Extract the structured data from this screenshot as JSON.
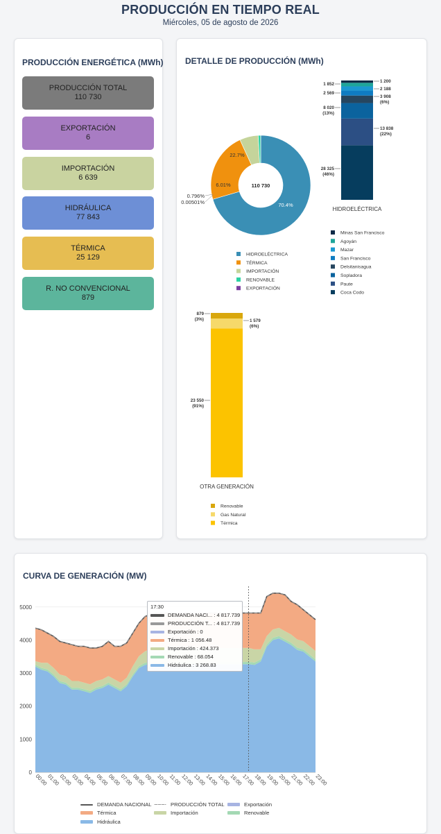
{
  "header": {
    "title": "PRODUCCIÓN EN TIEMPO REAL",
    "date": "Miércoles, 05 de agosto de 2026"
  },
  "kpi_panel": {
    "title": "PRODUCCIÓN ENERGÉTICA (MWh)",
    "items": [
      {
        "label": "PRODUCCIÓN TOTAL",
        "value": "110 730",
        "color": "#7b7b7b"
      },
      {
        "label": "EXPORTACIÓN",
        "value": "6",
        "color": "#a87cc3"
      },
      {
        "label": "IMPORTACIÓN",
        "value": "6 639",
        "color": "#c9d3a0"
      },
      {
        "label": "HIDRÁULICA",
        "value": "77 843",
        "color": "#6d8fd6"
      },
      {
        "label": "TÉRMICA",
        "value": "25 129",
        "color": "#e6bd52"
      },
      {
        "label": "R. NO CONVENCIONAL",
        "value": "879",
        "color": "#5cb59c"
      }
    ]
  },
  "detail": {
    "title": "DETALLE DE PRODUCCIÓN (MWh)"
  },
  "chart_data": [
    {
      "type": "pie",
      "donut_center": "110 730",
      "labels": [
        "HIDROELÉCTRICA",
        "TÉRMICA",
        "IMPORTACIÓN",
        "RENOVABLE",
        "EXPORTACIÓN"
      ],
      "values": [
        70.4,
        22.7,
        6.01,
        0.796,
        0.00501
      ],
      "value_labels": [
        "70.4%",
        "22.7%",
        "6.01%",
        "0.796%",
        "0.00501%"
      ],
      "colors": [
        "#3a8fb5",
        "#f0910e",
        "#c5d49b",
        "#2bd1a3",
        "#7b3fa0"
      ]
    },
    {
      "type": "bar",
      "stacked": true,
      "category": "HIDROELÉCTRICA",
      "segments": [
        {
          "name": "Coca Codo",
          "value": 28325,
          "label": "28 325",
          "pct": "(46%)",
          "color": "#063d5e"
        },
        {
          "name": "Paute",
          "value": 13838,
          "label": "13 838",
          "pct": "(22%)",
          "color": "#2c4f84"
        },
        {
          "name": "Sopladora",
          "value": 8020,
          "label": "8 020",
          "pct": "(13%)",
          "color": "#0b639e"
        },
        {
          "name": "Delsitanisagua",
          "value": 3908,
          "label": "3 908",
          "pct": "(6%)",
          "color": "#26465f"
        },
        {
          "name": "San Francisco",
          "value": 2569,
          "label": "2 569",
          "pct": "",
          "color": "#0f7cc2"
        },
        {
          "name": "Mazar",
          "value": 2188,
          "label": "2 188",
          "pct": "",
          "color": "#1b98d1"
        },
        {
          "name": "Agoyán",
          "value": 1852,
          "label": "1 852",
          "pct": "",
          "color": "#1fa59a"
        },
        {
          "name": "Minas San Francisco",
          "value": 1200,
          "label": "1 200",
          "pct": "",
          "color": "#0e2a47"
        }
      ]
    },
    {
      "type": "bar",
      "stacked": true,
      "category": "OTRA GENERACIÓN",
      "segments": [
        {
          "name": "Térmica",
          "value": 23550,
          "label": "23 550",
          "pct": "(91%)",
          "color": "#fcc300"
        },
        {
          "name": "Gas Natural",
          "value": 1579,
          "label": "1 579",
          "pct": "(6%)",
          "color": "#f6d96a"
        },
        {
          "name": "Renovable",
          "value": 879,
          "label": "879",
          "pct": "(3%)",
          "color": "#d9a70c"
        }
      ]
    },
    {
      "type": "area",
      "title": "CURVA DE GENERACIÓN (MW)",
      "x": [
        "00:00",
        "00:30",
        "01:00",
        "01:30",
        "02:00",
        "02:30",
        "03:00",
        "03:30",
        "04:00",
        "04:30",
        "05:00",
        "05:30",
        "06:00",
        "06:30",
        "07:00",
        "07:30",
        "08:00",
        "08:30",
        "09:00",
        "09:30",
        "10:00",
        "10:30",
        "11:00",
        "11:30",
        "12:00",
        "12:30",
        "13:00",
        "13:30",
        "14:00",
        "14:30",
        "15:00",
        "15:30",
        "16:00",
        "16:30",
        "17:00",
        "17:30",
        "18:00",
        "18:30",
        "19:00",
        "19:30",
        "20:00",
        "20:30",
        "21:00",
        "21:30",
        "22:00",
        "22:30",
        "23:00"
      ],
      "x_tick_labels": [
        "00:00",
        "01:00",
        "02:00",
        "03:00",
        "04:00",
        "05:00",
        "06:00",
        "07:00",
        "08:00",
        "09:00",
        "10:00",
        "11:00",
        "12:00",
        "13:00",
        "14:00",
        "15:00",
        "16:00",
        "17:00",
        "18:00",
        "19:00",
        "20:00",
        "21:00",
        "22:00",
        "23:00"
      ],
      "ylim": [
        0,
        5500
      ],
      "y_ticks": [
        0,
        1000,
        2000,
        3000,
        4000,
        5000
      ],
      "series": [
        {
          "name": "Hidráulica",
          "color": "#8ab9e6",
          "values": [
            3200,
            3100,
            3050,
            2900,
            2700,
            2650,
            2500,
            2500,
            2450,
            2400,
            2500,
            2550,
            2650,
            2550,
            2450,
            2600,
            2900,
            3150,
            3250,
            3268,
            3268,
            3268,
            3268,
            3268,
            3268,
            3268,
            3268,
            3268,
            3268,
            3268,
            3268,
            3268,
            3268,
            3268,
            3268,
            3268.83,
            3250,
            3350,
            3800,
            4000,
            4050,
            3950,
            3850,
            3700,
            3650,
            3500,
            3350
          ]
        },
        {
          "name": "Renovable",
          "color": "#a4d9b4",
          "values": [
            60,
            60,
            60,
            60,
            60,
            60,
            60,
            60,
            60,
            60,
            60,
            60,
            60,
            60,
            60,
            60,
            60,
            60,
            60,
            68,
            68,
            68,
            68,
            68,
            68,
            68,
            68,
            68,
            68,
            68,
            68,
            68,
            68,
            68,
            68,
            68.054,
            68,
            68,
            68,
            68,
            68,
            68,
            68,
            68,
            68,
            68,
            68
          ]
        },
        {
          "name": "Importación",
          "color": "#c9d5a6",
          "values": [
            100,
            150,
            200,
            200,
            200,
            200,
            200,
            200,
            200,
            200,
            200,
            200,
            200,
            200,
            200,
            200,
            250,
            300,
            350,
            400,
            424,
            424,
            424,
            424,
            424,
            424,
            424,
            424,
            424,
            424,
            424,
            424,
            424,
            424,
            424,
            424.373,
            400,
            300,
            250,
            250,
            250,
            250,
            250,
            250,
            250,
            250,
            250
          ]
        },
        {
          "name": "Térmica",
          "color": "#f3aa83",
          "values": [
            1000,
            1000,
            900,
            950,
            1000,
            1000,
            1100,
            1050,
            1100,
            1100,
            1000,
            1000,
            1050,
            1000,
            1100,
            1050,
            1000,
            1000,
            1050,
            1050,
            1056,
            1056,
            1056,
            1056,
            1056,
            1056,
            1056,
            1056,
            1056,
            1056,
            1056,
            1056,
            1056,
            1056,
            1056,
            1056.48,
            1100,
            1100,
            1200,
            1100,
            1050,
            1100,
            1000,
            1050,
            950,
            950,
            950
          ]
        },
        {
          "name": "Exportación",
          "color": "#a7b4e2",
          "values": [
            0,
            0,
            0,
            0,
            0,
            0,
            0,
            0,
            0,
            0,
            0,
            0,
            0,
            0,
            0,
            0,
            0,
            0,
            0,
            0,
            0,
            0,
            0,
            0,
            0,
            0,
            0,
            0,
            0,
            0,
            0,
            0,
            0,
            0,
            0,
            0,
            0,
            0,
            0,
            0,
            0,
            0,
            0,
            0,
            0,
            0,
            0
          ]
        },
        {
          "name": "DEMANDA NACIONAL",
          "color": "#555555",
          "line": true,
          "values": [
            4360,
            4310,
            4210,
            4110,
            3960,
            3910,
            3860,
            3810,
            3810,
            3760,
            3760,
            3810,
            3960,
            3810,
            3810,
            3910,
            4210,
            4510,
            4710,
            4786,
            4817,
            4817,
            4817,
            4817,
            4817,
            4817,
            4817,
            4817,
            4817,
            4817,
            4817,
            4817,
            4817,
            4817,
            4817,
            4817.739,
            4818,
            4818,
            5318,
            5418,
            5418,
            5368,
            5168,
            5068,
            4918,
            4768,
            4618
          ]
        },
        {
          "name": "PRODUCCIÓN TOTAL",
          "color": "#999999",
          "dashed": true,
          "values": [
            4360,
            4310,
            4210,
            4110,
            3960,
            3910,
            3860,
            3810,
            3810,
            3760,
            3760,
            3810,
            3960,
            3810,
            3810,
            3910,
            4210,
            4510,
            4710,
            4786,
            4817,
            4817,
            4817,
            4817,
            4817,
            4817,
            4817,
            4817,
            4817,
            4817,
            4817,
            4817,
            4817,
            4817,
            4817,
            4817.739,
            4818,
            4818,
            5318,
            5418,
            5418,
            5368,
            5168,
            5068,
            4918,
            4768,
            4618
          ]
        }
      ],
      "tooltip": {
        "time": "17:30",
        "rows": [
          {
            "label": "DEMANDA NACI... : 4 817.739",
            "color": "#555555"
          },
          {
            "label": "PRODUCCIÓN T... : 4 817.739",
            "color": "#999999"
          },
          {
            "label": "Exportación : 0",
            "color": "#a7b4e2"
          },
          {
            "label": "Térmica : 1 056.48",
            "color": "#f3aa83"
          },
          {
            "label": "Importación : 424.373",
            "color": "#c9d5a6"
          },
          {
            "label": "Renovable : 68.054",
            "color": "#a4d9b4"
          },
          {
            "label": "Hidráulica : 3 268.83",
            "color": "#8ab9e6"
          }
        ]
      },
      "legend": [
        "DEMANDA NACIONAL",
        "PRODUCCIÓN TOTAL",
        "Exportación",
        "Térmica",
        "Importación",
        "Renovable",
        "Hidráulica"
      ]
    }
  ]
}
